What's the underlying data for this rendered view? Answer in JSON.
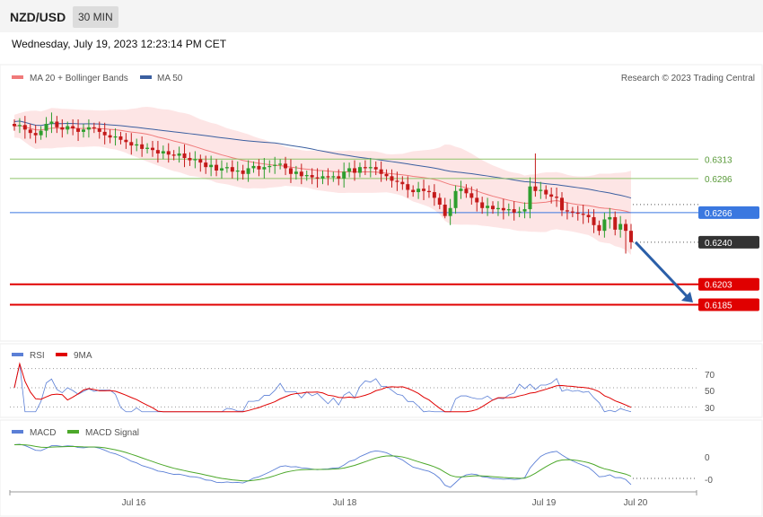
{
  "header": {
    "symbol": "NZD/USD",
    "timeframe": "30 MIN",
    "datetime": "Wednesday, July 19, 2023 12:23:14 PM CET"
  },
  "colors": {
    "ma20": "#f07a7a",
    "ma50": "#3b5fa0",
    "band_fill": "#fde0e0",
    "bull": "#2e9e2e",
    "bear": "#c41a1a",
    "support": "#e00000",
    "resistance": "#8fc46a",
    "pivot": "#3a78e0",
    "current": "#333333",
    "rsi": "#5b7fd6",
    "rsi_ma": "#e00000",
    "macd": "#5b7fd6",
    "macd_signal": "#4ca82a",
    "arrow": "#2b5fa8"
  },
  "chart_data": [
    {
      "type": "candlestick",
      "title": "NZD/USD",
      "legend": [
        {
          "label": "MA 20 + Bollinger Bands",
          "color": "#f07a7a"
        },
        {
          "label": "MA 50",
          "color": "#3b5fa0"
        }
      ],
      "credit": "Research © 2023 Trading Central",
      "x_ticks": [
        "Jul 16",
        "Jul 18",
        "Jul 19",
        "Jul 20"
      ],
      "close": [
        0.6342,
        0.6343,
        0.6339,
        0.6336,
        0.6334,
        0.6338,
        0.6344,
        0.6346,
        0.6341,
        0.6339,
        0.6342,
        0.634,
        0.6337,
        0.6339,
        0.6341,
        0.634,
        0.6337,
        0.6334,
        0.6332,
        0.6333,
        0.633,
        0.6328,
        0.6325,
        0.6326,
        0.6322,
        0.6323,
        0.6321,
        0.6318,
        0.632,
        0.6317,
        0.6316,
        0.6318,
        0.6314,
        0.6312,
        0.6313,
        0.631,
        0.6306,
        0.6308,
        0.6303,
        0.6305,
        0.6306,
        0.6302,
        0.6303,
        0.63,
        0.6305,
        0.6307,
        0.6304,
        0.6306,
        0.6307,
        0.6308,
        0.6309,
        0.6305,
        0.63,
        0.6302,
        0.6298,
        0.6299,
        0.6297,
        0.6296,
        0.6298,
        0.6297,
        0.6298,
        0.6296,
        0.6302,
        0.6305,
        0.6301,
        0.6306,
        0.6305,
        0.6306,
        0.6304,
        0.63,
        0.6298,
        0.6294,
        0.6293,
        0.6291,
        0.6286,
        0.6284,
        0.6287,
        0.6285,
        0.6284,
        0.6279,
        0.6273,
        0.6263,
        0.627,
        0.6285,
        0.6287,
        0.6283,
        0.6279,
        0.6275,
        0.627,
        0.6272,
        0.6269,
        0.627,
        0.6268,
        0.6269,
        0.6266,
        0.6267,
        0.6269,
        0.6289,
        0.6285,
        0.6286,
        0.6282,
        0.628,
        0.6279,
        0.6268,
        0.6267,
        0.6266,
        0.6265,
        0.6264,
        0.6262,
        0.6255,
        0.625,
        0.626,
        0.6262,
        0.6251,
        0.6256,
        0.625,
        0.624
      ],
      "y_range": [
        0.6157,
        0.6374
      ],
      "levels": [
        {
          "value": "0.6313",
          "kind": "resistance"
        },
        {
          "value": "0.6296",
          "kind": "resistance"
        },
        {
          "value": "0.6266",
          "kind": "pivot"
        },
        {
          "value": "0.6240",
          "kind": "current"
        },
        {
          "value": "0.6203",
          "kind": "support"
        },
        {
          "value": "0.6185",
          "kind": "support"
        }
      ],
      "forecast_arrow": {
        "from": 0.624,
        "to": 0.6187,
        "direction": "down"
      }
    },
    {
      "type": "line",
      "title": "RSI",
      "legend": [
        {
          "label": "RSI",
          "color": "#5b7fd6"
        },
        {
          "label": "9MA",
          "color": "#e00000"
        }
      ],
      "y_ticks": [
        "70",
        "50",
        "30"
      ],
      "y_range": [
        22,
        78
      ]
    },
    {
      "type": "line",
      "title": "MACD",
      "legend": [
        {
          "label": "MACD",
          "color": "#5b7fd6"
        },
        {
          "label": "MACD Signal",
          "color": "#4ca82a"
        }
      ],
      "y_ticks": [
        "0",
        "-0"
      ]
    }
  ]
}
